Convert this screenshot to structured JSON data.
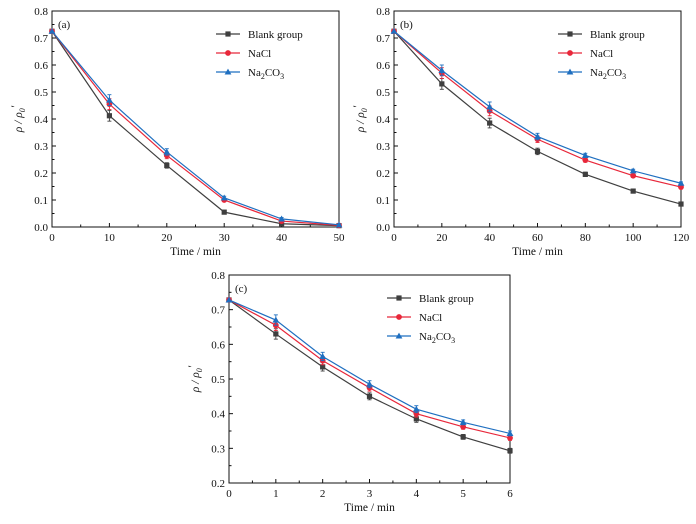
{
  "colors": {
    "blank": "#3f3f3f",
    "nacl": "#e8273a",
    "na2co3": "#1f6fc0"
  },
  "chart_data": [
    {
      "type": "line",
      "panel_label": "(a)",
      "xlabel": "Time / min",
      "ylabel": {
        "main": "ρ / ρ",
        "sub": "0",
        "prime": "′"
      },
      "xlim": [
        0,
        50
      ],
      "ylim": [
        0,
        0.8
      ],
      "xticks": [
        "0",
        "10",
        "20",
        "30",
        "40",
        "50"
      ],
      "yticks": [
        "0.0",
        "0.1",
        "0.2",
        "0.3",
        "0.4",
        "0.5",
        "0.6",
        "0.7",
        "0.8"
      ],
      "x": [
        0,
        10,
        20,
        30,
        40,
        50
      ],
      "legend_position": "top-right",
      "series": [
        {
          "name": "Blank group",
          "color_key": "blank",
          "marker": "square",
          "values": [
            0.725,
            0.412,
            0.228,
            0.055,
            0.012,
            0.005
          ],
          "errors": [
            0,
            0.02,
            0.01,
            0.006,
            0.005,
            0.003
          ]
        },
        {
          "name": "NaCl",
          "color_key": "nacl",
          "marker": "circle",
          "values": [
            0.725,
            0.455,
            0.265,
            0.1,
            0.022,
            0.006
          ],
          "errors": [
            0,
            0.02,
            0.012,
            0.006,
            0.005,
            0.003
          ]
        },
        {
          "name": "Na2CO3",
          "name_main": "Na",
          "name_sub1": "2",
          "name_mid": "CO",
          "name_sub2": "3",
          "color_key": "na2co3",
          "marker": "triangle",
          "values": [
            0.725,
            0.47,
            0.278,
            0.108,
            0.03,
            0.008
          ],
          "errors": [
            0,
            0.02,
            0.012,
            0.006,
            0.005,
            0.003
          ]
        }
      ]
    },
    {
      "type": "line",
      "panel_label": "(b)",
      "xlabel": "Time / min",
      "ylabel": {
        "main": "ρ / ρ",
        "sub": "0",
        "prime": "′"
      },
      "xlim": [
        0,
        120
      ],
      "ylim": [
        0,
        0.8
      ],
      "xticks": [
        "0",
        "20",
        "40",
        "60",
        "80",
        "100",
        "120"
      ],
      "yticks": [
        "0.0",
        "0.1",
        "0.2",
        "0.3",
        "0.4",
        "0.5",
        "0.6",
        "0.7",
        "0.8"
      ],
      "x": [
        0,
        20,
        40,
        60,
        80,
        100,
        120
      ],
      "legend_position": "top-right",
      "series": [
        {
          "name": "Blank group",
          "color_key": "blank",
          "marker": "square",
          "values": [
            0.725,
            0.53,
            0.385,
            0.28,
            0.195,
            0.133,
            0.085
          ],
          "errors": [
            0,
            0.02,
            0.018,
            0.012,
            0.008,
            0.006,
            0.004
          ]
        },
        {
          "name": "NaCl",
          "color_key": "nacl",
          "marker": "circle",
          "values": [
            0.725,
            0.57,
            0.43,
            0.325,
            0.248,
            0.19,
            0.148
          ],
          "errors": [
            0,
            0.02,
            0.018,
            0.012,
            0.008,
            0.006,
            0.005
          ]
        },
        {
          "name": "Na2CO3",
          "name_main": "Na",
          "name_sub1": "2",
          "name_mid": "CO",
          "name_sub2": "3",
          "color_key": "na2co3",
          "marker": "triangle",
          "values": [
            0.725,
            0.58,
            0.445,
            0.335,
            0.265,
            0.208,
            0.162
          ],
          "errors": [
            0,
            0.02,
            0.018,
            0.012,
            0.008,
            0.006,
            0.005
          ]
        }
      ]
    },
    {
      "type": "line",
      "panel_label": "(c)",
      "xlabel": "Time / min",
      "ylabel": {
        "main": "ρ / ρ",
        "sub": "0",
        "prime": "′"
      },
      "xlim": [
        0,
        6
      ],
      "ylim": [
        0.2,
        0.8
      ],
      "xticks": [
        "0",
        "1",
        "2",
        "3",
        "4",
        "5",
        "6"
      ],
      "yticks": [
        "0.2",
        "0.3",
        "0.4",
        "0.5",
        "0.6",
        "0.7",
        "0.8"
      ],
      "x": [
        0,
        1,
        2,
        3,
        4,
        5,
        6
      ],
      "legend_position": "top-right",
      "series": [
        {
          "name": "Blank group",
          "color_key": "blank",
          "marker": "square",
          "values": [
            0.728,
            0.63,
            0.535,
            0.45,
            0.385,
            0.333,
            0.293
          ],
          "errors": [
            0,
            0.015,
            0.012,
            0.01,
            0.01,
            0.007,
            0.007
          ]
        },
        {
          "name": "NaCl",
          "color_key": "nacl",
          "marker": "circle",
          "values": [
            0.728,
            0.655,
            0.553,
            0.475,
            0.4,
            0.362,
            0.33
          ],
          "errors": [
            0,
            0.015,
            0.012,
            0.01,
            0.01,
            0.007,
            0.007
          ]
        },
        {
          "name": "Na2CO3",
          "name_main": "Na",
          "name_sub1": "2",
          "name_mid": "CO",
          "name_sub2": "3",
          "color_key": "na2co3",
          "marker": "triangle",
          "values": [
            0.728,
            0.67,
            0.565,
            0.485,
            0.413,
            0.375,
            0.343
          ],
          "errors": [
            0,
            0.015,
            0.012,
            0.01,
            0.01,
            0.007,
            0.007
          ]
        }
      ]
    }
  ]
}
